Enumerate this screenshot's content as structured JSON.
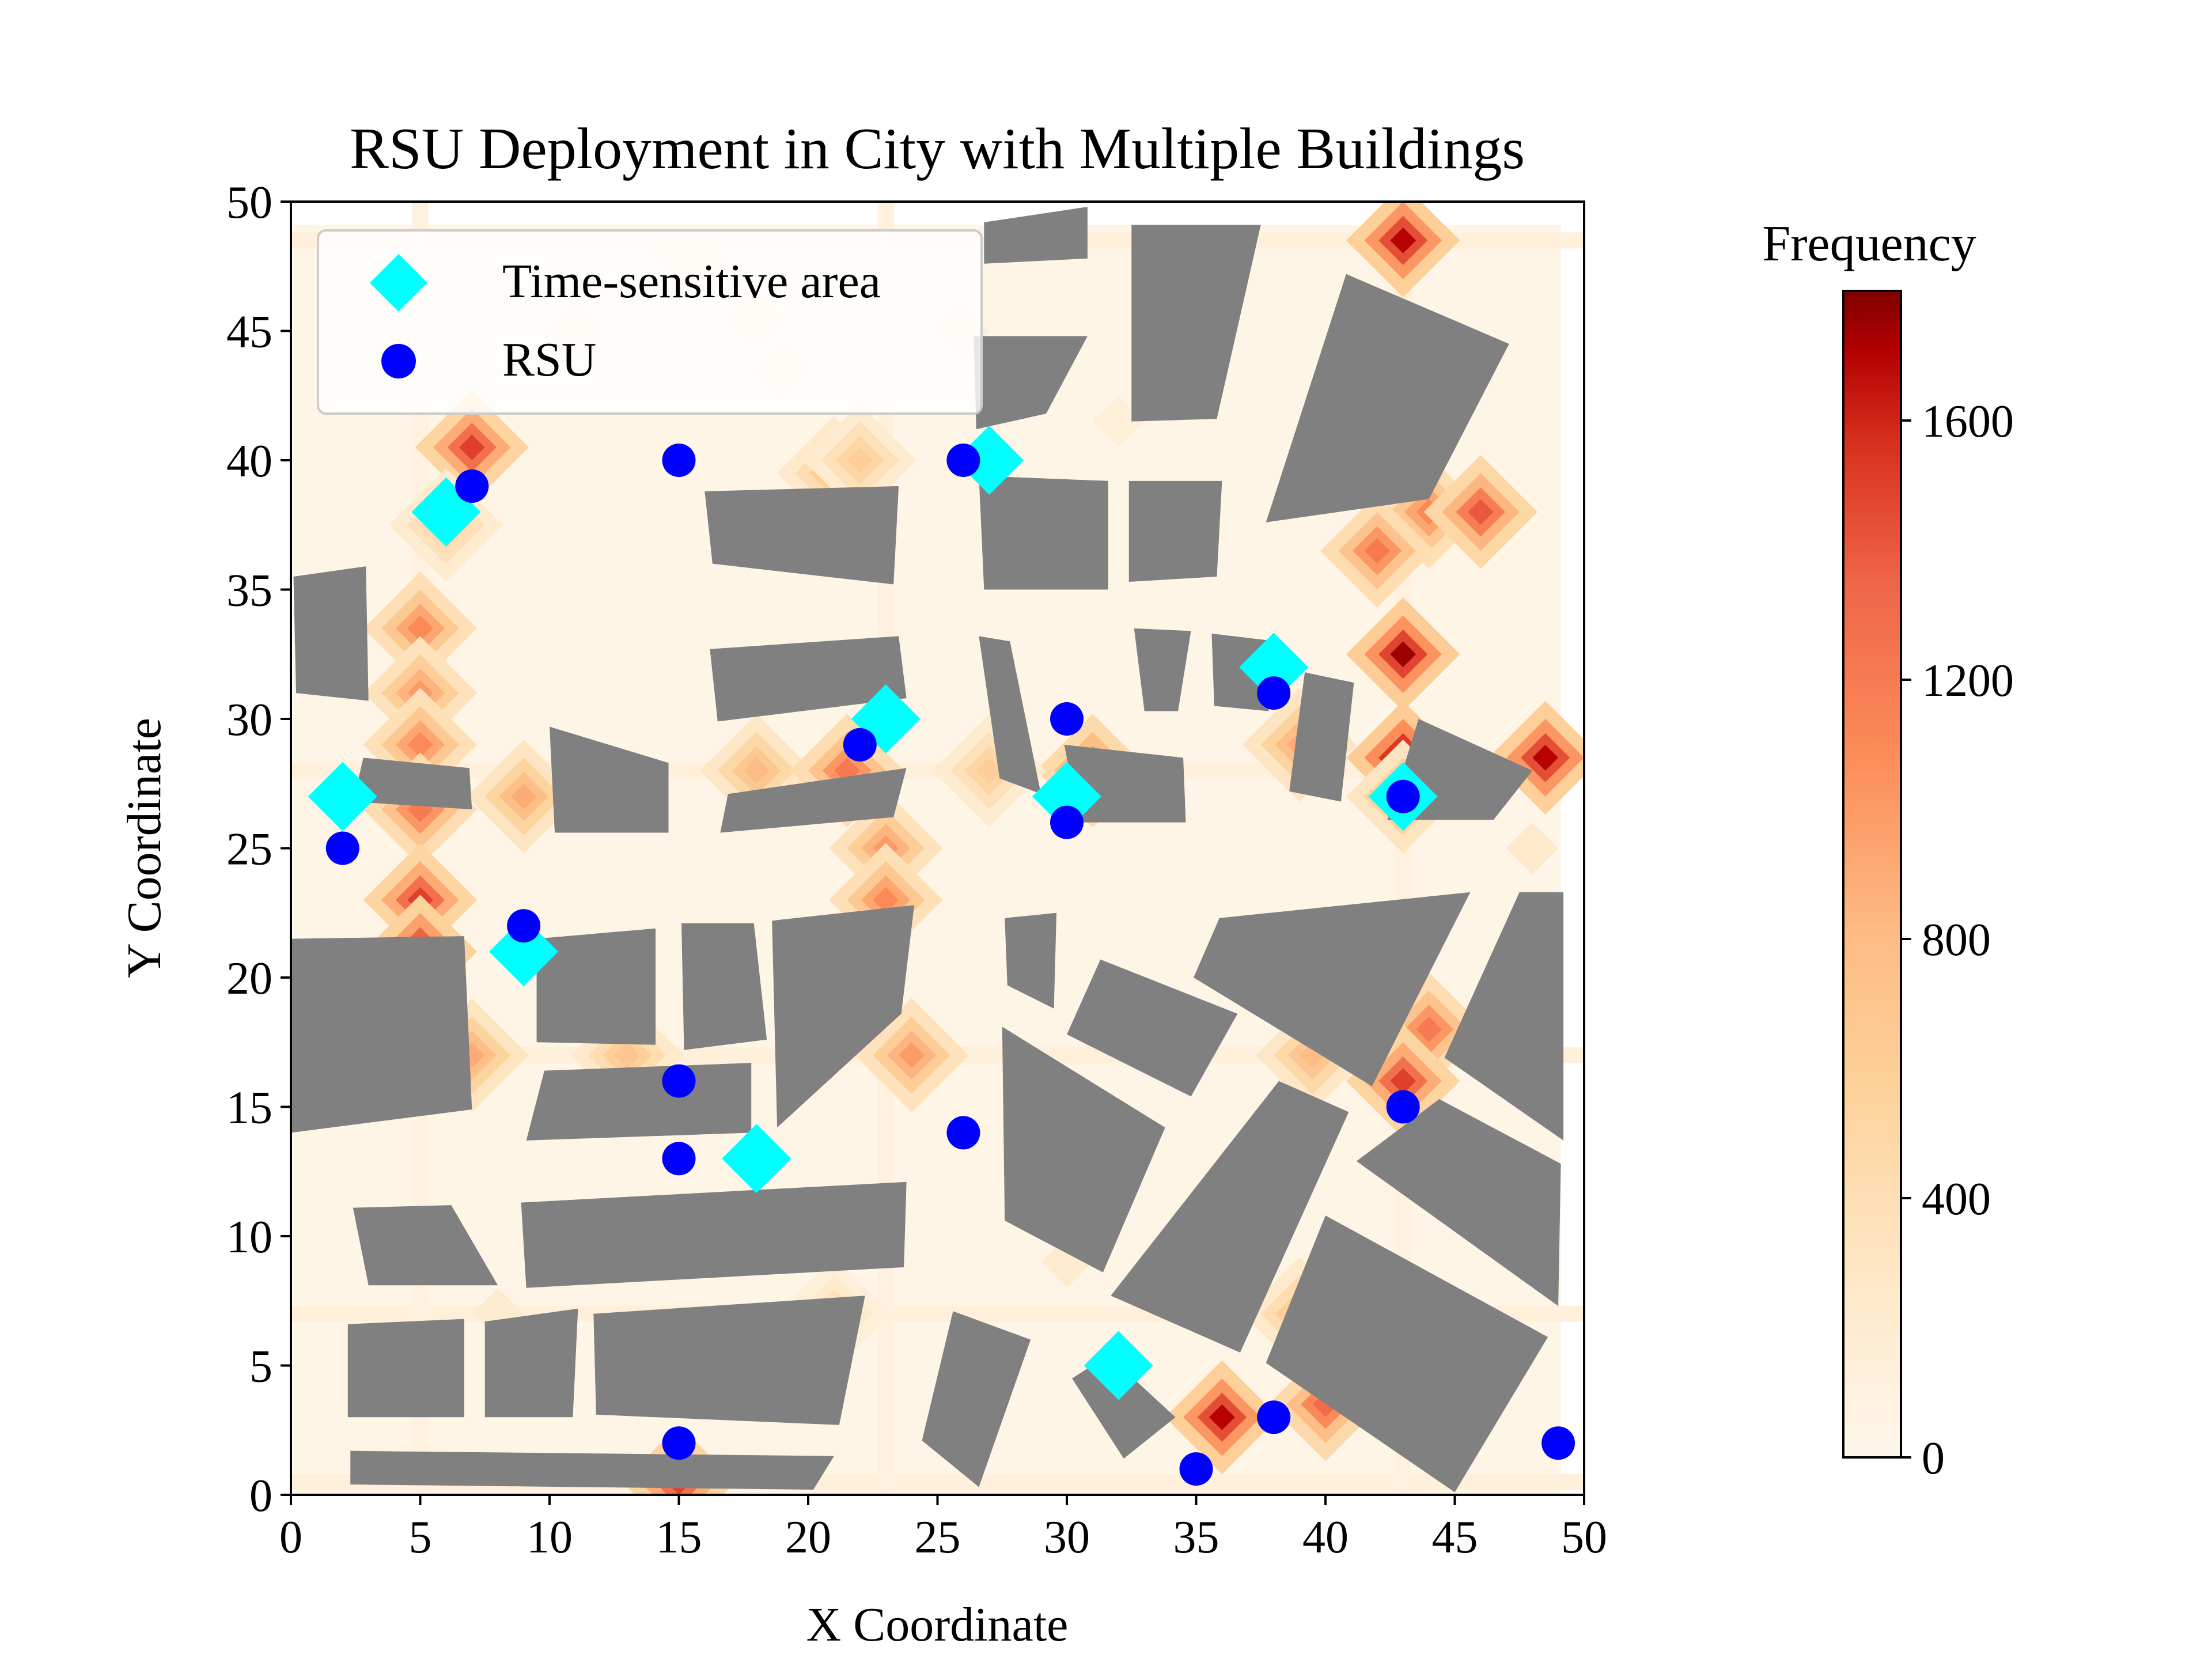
{
  "chart_data": {
    "type": "scatter",
    "title": "RSU Deployment in City with Multiple Buildings",
    "xlabel": "X Coordinate",
    "ylabel": "Y Coordinate",
    "xlim": [
      0,
      50
    ],
    "ylim": [
      0,
      50
    ],
    "xticks": [
      "0",
      "5",
      "10",
      "15",
      "20",
      "25",
      "30",
      "35",
      "40",
      "45",
      "50"
    ],
    "yticks": [
      "0",
      "5",
      "10",
      "15",
      "20",
      "25",
      "30",
      "35",
      "40",
      "45",
      "50"
    ],
    "legend_position": "top-left",
    "series": [
      {
        "name": "Time-sensitive area",
        "marker": "diamond",
        "color": "#00ffff",
        "points": [
          [
            6,
            38
          ],
          [
            27,
            40
          ],
          [
            2,
            27
          ],
          [
            23,
            30
          ],
          [
            30,
            27
          ],
          [
            38,
            32
          ],
          [
            43,
            27
          ],
          [
            9,
            21
          ],
          [
            18,
            13
          ],
          [
            32,
            5
          ]
        ]
      },
      {
        "name": "RSU",
        "marker": "circle",
        "color": "#0000ff",
        "points": [
          [
            7,
            39
          ],
          [
            15,
            40
          ],
          [
            26,
            40
          ],
          [
            2,
            25
          ],
          [
            22,
            29
          ],
          [
            30,
            30
          ],
          [
            30,
            26
          ],
          [
            38,
            31
          ],
          [
            43,
            27
          ],
          [
            9,
            22
          ],
          [
            15,
            16
          ],
          [
            15,
            13
          ],
          [
            26,
            14
          ],
          [
            43,
            15
          ],
          [
            15,
            2
          ],
          [
            38,
            3
          ],
          [
            35,
            1
          ],
          [
            49,
            2
          ]
        ]
      }
    ],
    "heatmap": {
      "label": "Frequency",
      "colormap": "OrRd",
      "vmin": 0,
      "vmax": 1800,
      "ticks": [
        "0",
        "400",
        "800",
        "1200",
        "1600"
      ],
      "hotspots": [
        [
          43,
          48.5,
          1700
        ],
        [
          7,
          40.5,
          1500
        ],
        [
          6,
          37.5,
          600
        ],
        [
          21,
          39.5,
          700
        ],
        [
          44,
          38,
          1100
        ],
        [
          46,
          38,
          1400
        ],
        [
          42,
          36.5,
          1200
        ],
        [
          43,
          32.5,
          1750
        ],
        [
          43,
          28.5,
          1800
        ],
        [
          48.5,
          28.5,
          1700
        ],
        [
          31,
          28,
          1300
        ],
        [
          39,
          29,
          900
        ],
        [
          5,
          33.5,
          1100
        ],
        [
          5,
          31,
          1000
        ],
        [
          5,
          29,
          1100
        ],
        [
          5,
          26.5,
          1200
        ],
        [
          5,
          23,
          1500
        ],
        [
          5,
          21,
          1600
        ],
        [
          9,
          27,
          900
        ],
        [
          18,
          28,
          800
        ],
        [
          21.5,
          28,
          1200
        ],
        [
          23,
          25,
          1000
        ],
        [
          23,
          23,
          1100
        ],
        [
          13,
          17,
          700
        ],
        [
          24,
          17,
          1000
        ],
        [
          0.5,
          17,
          1200
        ],
        [
          7,
          17,
          900
        ],
        [
          39.5,
          17,
          800
        ],
        [
          44,
          18,
          1200
        ],
        [
          43,
          16,
          1500
        ],
        [
          36,
          3,
          1700
        ],
        [
          40,
          3.5,
          1300
        ],
        [
          15,
          0.5,
          1500
        ],
        [
          39,
          7,
          700
        ],
        [
          21,
          7,
          400
        ],
        [
          27,
          28,
          600
        ],
        [
          43,
          27,
          900
        ],
        [
          22,
          40,
          600
        ]
      ],
      "faint_hotspots": [
        [
          16,
          47.5,
          250
        ],
        [
          18,
          45.5,
          250
        ],
        [
          19,
          43.5,
          200
        ],
        [
          15,
          48,
          180
        ],
        [
          11,
          45,
          150
        ],
        [
          8,
          7,
          200
        ],
        [
          32,
          41.5,
          150
        ],
        [
          48,
          25,
          250
        ],
        [
          30,
          9,
          200
        ],
        [
          26,
          45,
          180
        ]
      ],
      "road_lines_y": [
        48.5,
        28,
        17,
        7,
        0.5
      ],
      "road_lines_x": [
        5,
        23,
        43
      ]
    },
    "buildings": [
      [
        [
          26.8,
          49.2
        ],
        [
          30.8,
          49.8
        ],
        [
          30.8,
          47.8
        ],
        [
          26.8,
          47.6
        ]
      ],
      [
        [
          32.5,
          49.1
        ],
        [
          37.5,
          49.1
        ],
        [
          35.8,
          41.6
        ],
        [
          32.5,
          41.5
        ]
      ],
      [
        [
          40.8,
          47.2
        ],
        [
          47.1,
          44.5
        ],
        [
          44,
          38.5
        ],
        [
          37.7,
          37.6
        ]
      ],
      [
        [
          26.4,
          44.8
        ],
        [
          30.8,
          44.8
        ],
        [
          29.2,
          41.8
        ],
        [
          26.5,
          41.2
        ]
      ],
      [
        [
          16,
          38.8
        ],
        [
          23.5,
          39.0
        ],
        [
          23.3,
          35.2
        ],
        [
          16.3,
          36.0
        ]
      ],
      [
        [
          26.6,
          39.4
        ],
        [
          31.6,
          39.2
        ],
        [
          31.6,
          35.0
        ],
        [
          26.8,
          35.0
        ]
      ],
      [
        [
          32.4,
          39.2
        ],
        [
          36.0,
          39.2
        ],
        [
          35.8,
          35.5
        ],
        [
          32.4,
          35.3
        ]
      ],
      [
        [
          0.1,
          35.5
        ],
        [
          2.9,
          35.9
        ],
        [
          3.0,
          30.7
        ],
        [
          0.2,
          31.0
        ]
      ],
      [
        [
          16.2,
          32.7
        ],
        [
          23.5,
          33.2
        ],
        [
          23.8,
          30.8
        ],
        [
          16.5,
          29.9
        ]
      ],
      [
        [
          26.6,
          33.2
        ],
        [
          27.8,
          33.0
        ],
        [
          29.0,
          27.1
        ],
        [
          27.4,
          27.7
        ]
      ],
      [
        [
          32.6,
          33.5
        ],
        [
          34.8,
          33.4
        ],
        [
          34.3,
          30.3
        ],
        [
          33.0,
          30.3
        ]
      ],
      [
        [
          35.6,
          33.3
        ],
        [
          38.1,
          33.0
        ],
        [
          37.8,
          30.3
        ],
        [
          35.7,
          30.5
        ]
      ],
      [
        [
          39.2,
          31.8
        ],
        [
          41.1,
          31.4
        ],
        [
          40.6,
          26.8
        ],
        [
          38.6,
          27.2
        ]
      ],
      [
        [
          43.6,
          30.0
        ],
        [
          48.0,
          28.0
        ],
        [
          46.5,
          26.1
        ],
        [
          42.4,
          26.1
        ]
      ],
      [
        [
          10.0,
          29.7
        ],
        [
          14.6,
          28.3
        ],
        [
          14.6,
          25.6
        ],
        [
          10.2,
          25.6
        ]
      ],
      [
        [
          2.8,
          28.5
        ],
        [
          6.9,
          28.1
        ],
        [
          7.0,
          26.5
        ],
        [
          2.4,
          26.8
        ]
      ],
      [
        [
          16.9,
          27.1
        ],
        [
          23.8,
          28.1
        ],
        [
          23.3,
          26.2
        ],
        [
          16.6,
          25.6
        ]
      ],
      [
        [
          29.9,
          29.0
        ],
        [
          34.5,
          28.5
        ],
        [
          34.6,
          26.0
        ],
        [
          30.5,
          26.0
        ]
      ],
      [
        [
          0.0,
          21.5
        ],
        [
          6.7,
          21.6
        ],
        [
          7.0,
          14.9
        ],
        [
          0.0,
          14.0
        ]
      ],
      [
        [
          9.5,
          21.5
        ],
        [
          14.1,
          21.9
        ],
        [
          14.1,
          17.4
        ],
        [
          9.5,
          17.5
        ]
      ],
      [
        [
          15.1,
          22.1
        ],
        [
          17.9,
          22.1
        ],
        [
          18.4,
          17.6
        ],
        [
          15.2,
          17.2
        ]
      ],
      [
        [
          18.6,
          22.2
        ],
        [
          24.1,
          22.8
        ],
        [
          23.6,
          18.6
        ],
        [
          18.8,
          14.2
        ]
      ],
      [
        [
          27.6,
          22.3
        ],
        [
          29.6,
          22.5
        ],
        [
          29.5,
          18.8
        ],
        [
          27.7,
          19.7
        ]
      ],
      [
        [
          31.3,
          20.7
        ],
        [
          36.6,
          18.6
        ],
        [
          34.8,
          15.4
        ],
        [
          30.0,
          17.8
        ]
      ],
      [
        [
          35.9,
          22.3
        ],
        [
          45.6,
          23.3
        ],
        [
          41.8,
          15.8
        ],
        [
          34.9,
          20.0
        ]
      ],
      [
        [
          47.5,
          23.3
        ],
        [
          49.2,
          23.3
        ],
        [
          49.2,
          13.7
        ],
        [
          44.6,
          16.9
        ]
      ],
      [
        [
          9.8,
          16.4
        ],
        [
          17.8,
          16.7
        ],
        [
          17.8,
          14.0
        ],
        [
          9.1,
          13.7
        ]
      ],
      [
        [
          27.5,
          18.1
        ],
        [
          33.8,
          14.2
        ],
        [
          31.4,
          8.6
        ],
        [
          27.6,
          10.6
        ]
      ],
      [
        [
          38.2,
          16.0
        ],
        [
          40.9,
          14.8
        ],
        [
          36.7,
          5.5
        ],
        [
          31.7,
          7.7
        ]
      ],
      [
        [
          44.4,
          15.3
        ],
        [
          49.1,
          12.8
        ],
        [
          49.0,
          7.3
        ],
        [
          41.2,
          12.9
        ]
      ],
      [
        [
          2.4,
          11.1
        ],
        [
          6.2,
          11.2
        ],
        [
          8.0,
          8.1
        ],
        [
          3.0,
          8.1
        ]
      ],
      [
        [
          8.9,
          11.3
        ],
        [
          23.8,
          12.1
        ],
        [
          23.7,
          8.8
        ],
        [
          9.1,
          8.0
        ]
      ],
      [
        [
          2.2,
          6.6
        ],
        [
          6.7,
          6.8
        ],
        [
          6.7,
          3.0
        ],
        [
          2.2,
          3.0
        ]
      ],
      [
        [
          7.5,
          6.7
        ],
        [
          11.1,
          7.2
        ],
        [
          10.9,
          3.0
        ],
        [
          7.5,
          3.0
        ]
      ],
      [
        [
          11.7,
          7.0
        ],
        [
          22.2,
          7.7
        ],
        [
          21.2,
          2.7
        ],
        [
          11.8,
          3.1
        ]
      ],
      [
        [
          25.6,
          7.1
        ],
        [
          28.6,
          6.0
        ],
        [
          26.6,
          0.3
        ],
        [
          24.4,
          2.1
        ]
      ],
      [
        [
          40.0,
          10.8
        ],
        [
          48.6,
          6.1
        ],
        [
          45.0,
          0.1
        ],
        [
          37.7,
          5.1
        ]
      ],
      [
        [
          31.6,
          5.4
        ],
        [
          34.2,
          3.0
        ],
        [
          32.2,
          1.4
        ],
        [
          30.2,
          4.5
        ]
      ],
      [
        [
          2.3,
          1.7
        ],
        [
          21.0,
          1.5
        ],
        [
          20.2,
          0.2
        ],
        [
          2.3,
          0.4
        ]
      ]
    ]
  }
}
